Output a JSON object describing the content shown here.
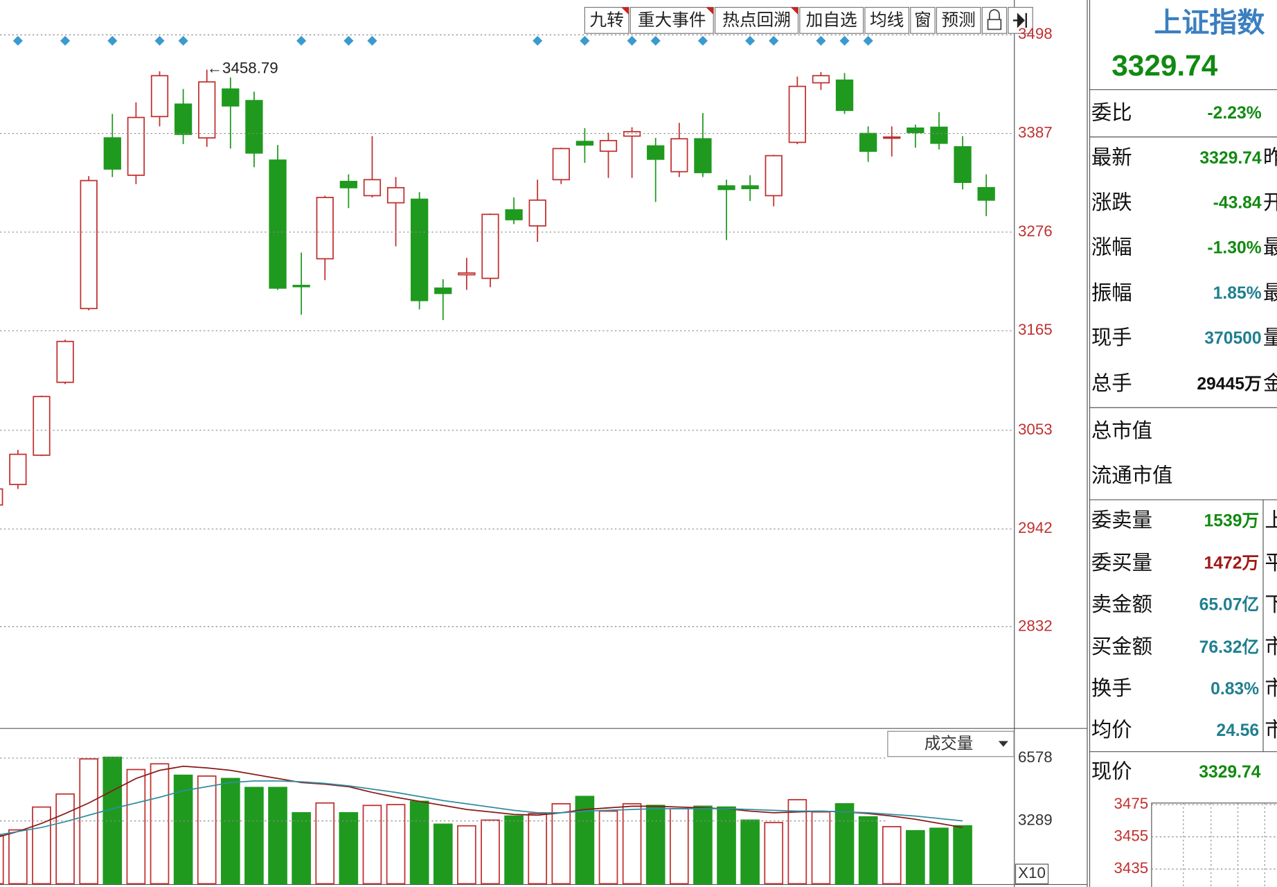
{
  "toolbar": {
    "buttons": [
      "九转",
      "重大事件",
      "热点回溯",
      "加自选",
      "均线",
      "窗",
      "预测"
    ]
  },
  "chart_data": [
    {
      "type": "candlestick",
      "annotation": "←3458.79",
      "open": [
        2969,
        2992,
        3025,
        3107,
        3190,
        3382,
        3340,
        3406,
        3420,
        3382,
        3437,
        3424,
        3357,
        3216,
        3246,
        3333,
        3317,
        3309,
        3313,
        3213,
        3228,
        3224,
        3301,
        3283,
        3335,
        3378,
        3367,
        3384,
        3373,
        3344,
        3381,
        3328,
        3328,
        3317,
        3377,
        3444,
        3447,
        3387,
        3382,
        3393,
        3394,
        3372,
        3326
      ],
      "high": [
        2989,
        3031,
        3092,
        3155,
        3339,
        3409,
        3422,
        3457,
        3437,
        3458.79,
        3450,
        3434,
        3374,
        3253,
        3317,
        3341,
        3384,
        3338,
        3321,
        3223,
        3247,
        3297,
        3315,
        3335,
        3371,
        3393,
        3388,
        3394,
        3382,
        3399,
        3410,
        3335,
        3340,
        3363,
        3451,
        3456,
        3455,
        3395,
        3395,
        3397,
        3411,
        3384,
        3341
      ],
      "low": [
        2967,
        2987,
        3024,
        3105,
        3188,
        3338,
        3330,
        3395,
        3375,
        3372,
        3370,
        3349,
        3211,
        3183,
        3222,
        3303,
        3315,
        3260,
        3189,
        3177,
        3211,
        3214,
        3285,
        3265,
        3330,
        3354,
        3337,
        3337,
        3310,
        3338,
        3338,
        3267,
        3311,
        3305,
        3375,
        3436,
        3409,
        3355,
        3361,
        3371,
        3369,
        3324,
        3294
      ],
      "close": [
        2987,
        3026,
        3091,
        3153,
        3334,
        3347,
        3405,
        3452,
        3386,
        3445,
        3418,
        3365,
        3213,
        3215,
        3315,
        3326,
        3335,
        3326,
        3199,
        3207,
        3230,
        3296,
        3290,
        3312,
        3370,
        3374,
        3379,
        3389,
        3358,
        3381,
        3343,
        3324,
        3325,
        3362,
        3440,
        3452,
        3413,
        3367,
        3383,
        3388,
        3376,
        3332,
        3312
      ],
      "signals": [
        1,
        3,
        5,
        7,
        8,
        13,
        15,
        16,
        23,
        25,
        27,
        28,
        30,
        32,
        33,
        35,
        36,
        37
      ],
      "up_color": "#c03030",
      "down_color": "#1f9a1f",
      "signal_color": "#3a9ad0",
      "ylim": [
        2718,
        3528
      ],
      "yticks": [
        3498,
        3387,
        3276,
        3165,
        3053,
        2942,
        2832
      ],
      "grid": true
    },
    {
      "type": "bar",
      "title": "成交量",
      "unit_label": "X10",
      "values": [
        2519,
        2818,
        4014,
        4697,
        6533,
        6619,
        5978,
        6277,
        5679,
        5636,
        5508,
        5039,
        5039,
        3715,
        4227,
        3715,
        4099,
        4142,
        4313,
        3117,
        3032,
        3331,
        3544,
        3672,
        4185,
        4569,
        3800,
        4185,
        4099,
        3928,
        4057,
        4014,
        3331,
        3203,
        4398,
        3758,
        4185,
        3501,
        2989,
        2776,
        2904,
        3032,
        null
      ],
      "lines": [
        {
          "color": "#8b1a1a",
          "values": [
            2391,
            2733,
            3160,
            3672,
            4227,
            4868,
            5508,
            5935,
            6149,
            6063,
            5935,
            5722,
            5508,
            5295,
            5209,
            5081,
            4782,
            4526,
            4313,
            4099,
            3886,
            3758,
            3630,
            3587,
            3715,
            3886,
            3971,
            4057,
            4057,
            4014,
            3971,
            3928,
            3800,
            3715,
            3758,
            3800,
            3758,
            3672,
            3544,
            3373,
            3160,
            2946,
            null
          ]
        },
        {
          "color": "#2f8fa0",
          "values": [
            2519,
            2733,
            2946,
            3245,
            3587,
            3928,
            4227,
            4526,
            4868,
            5081,
            5295,
            5380,
            5380,
            5338,
            5252,
            5124,
            4953,
            4782,
            4569,
            4355,
            4185,
            4014,
            3843,
            3715,
            3715,
            3800,
            3843,
            3886,
            3928,
            3928,
            3928,
            3928,
            3886,
            3843,
            3800,
            3800,
            3758,
            3715,
            3630,
            3544,
            3416,
            3288,
            null
          ]
        }
      ],
      "ylim": [
        0,
        8150
      ],
      "yticks": [
        3289,
        6578
      ],
      "grid": true
    }
  ],
  "quote_panel": {
    "title": "上证指数",
    "price": "3329.74",
    "rows": [
      {
        "label": "委比",
        "value": "-2.23%",
        "color": "#118a11"
      },
      {
        "label": "最新",
        "value": "3329.74",
        "extra": "昨",
        "color": "#118a11"
      },
      {
        "label": "涨跌",
        "value": "-43.84",
        "extra": "开",
        "color": "#118a11"
      },
      {
        "label": "涨幅",
        "value": "-1.30%",
        "extra": "最",
        "color": "#118a11"
      },
      {
        "label": "振幅",
        "value": "1.85%",
        "extra": "最",
        "color": "#1f7f8f"
      },
      {
        "label": "现手",
        "value": "370500",
        "extra": "量",
        "color": "#1f7f8f"
      },
      {
        "label": "总手",
        "value": "29445万",
        "extra": "金",
        "color": "#111111"
      },
      {
        "label": "总市值"
      },
      {
        "label": "流通市值"
      },
      {
        "label": "委卖量",
        "value": "1539万",
        "extra": "上",
        "color": "#118a11"
      },
      {
        "label": "委买量",
        "value": "1472万",
        "extra": "平",
        "color": "#a01818"
      },
      {
        "label": "卖金额",
        "value": "65.07亿",
        "extra": "下",
        "color": "#1f7f8f"
      },
      {
        "label": "买金额",
        "value": "76.32亿",
        "extra": "市",
        "color": "#1f7f8f"
      },
      {
        "label": "换手",
        "value": "0.83%",
        "extra": "市",
        "color": "#1f7f8f"
      },
      {
        "label": "均价",
        "value": "24.56",
        "extra": "市",
        "color": "#1f7f8f"
      },
      {
        "label": "现价",
        "value": "3329.74",
        "color": "#118a11"
      }
    ],
    "mini_ticks": [
      "3475",
      "3455",
      "3435"
    ]
  }
}
